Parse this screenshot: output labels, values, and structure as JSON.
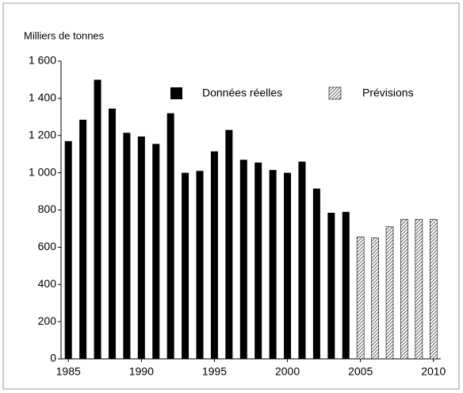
{
  "chart_data": {
    "type": "bar",
    "y_label": "Milliers de tonnes",
    "series": [
      {
        "name": "Données réelles",
        "color": "#000000",
        "pattern": "solid",
        "x": [
          1985,
          1986,
          1987,
          1988,
          1989,
          1990,
          1991,
          1992,
          1993,
          1994,
          1995,
          1996,
          1997,
          1998,
          1999,
          2000,
          2001,
          2002,
          2003,
          2004
        ],
        "values": [
          1170,
          1285,
          1500,
          1345,
          1215,
          1195,
          1155,
          1320,
          1000,
          1010,
          1115,
          1230,
          1070,
          1055,
          1015,
          1000,
          1060,
          915,
          785,
          790
        ]
      },
      {
        "name": "Prévisions",
        "color": "#000000",
        "pattern": "hatch",
        "x": [
          2005,
          2006,
          2007,
          2008,
          2009,
          2010
        ],
        "values": [
          655,
          650,
          710,
          750,
          750,
          750
        ]
      }
    ],
    "xlim": [
      1984.5,
      2010.5
    ],
    "xticks": [
      1985,
      1990,
      1995,
      2000,
      2005,
      2010
    ],
    "ylim": [
      0,
      1600
    ],
    "yticks": [
      0,
      200,
      400,
      600,
      800,
      {
        "value": 1000,
        "label": "1 000"
      },
      {
        "value": 1200,
        "label": "1 200"
      },
      {
        "value": 1400,
        "label": "1 400"
      },
      {
        "value": 1600,
        "label": "1 600"
      }
    ],
    "legend": "top-right"
  }
}
